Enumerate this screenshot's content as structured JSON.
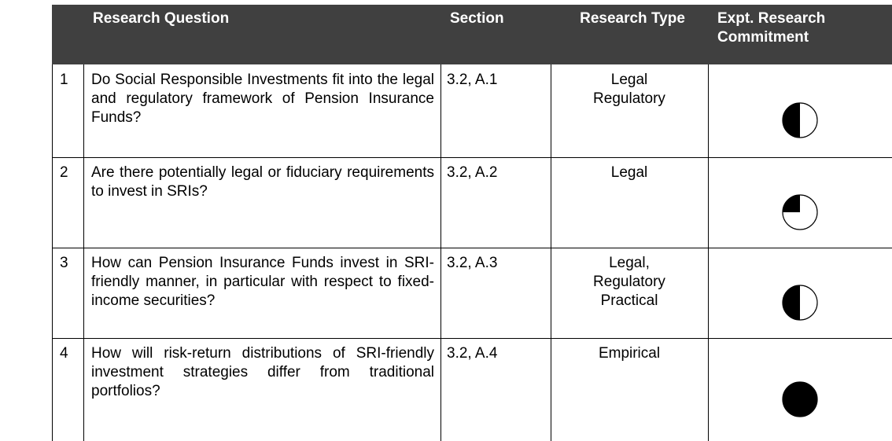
{
  "table": {
    "header": [
      "",
      "Research Question",
      "Section",
      "Research Type",
      "Expt. Research Commitment"
    ],
    "rows": [
      {
        "number": "1",
        "question": "Do Social Responsible Investments fit into the legal and regulatory framework of Pension Insurance Funds?",
        "section": "3.2, A.1",
        "type": "Legal\nRegulatory",
        "commitment": 0.5
      },
      {
        "number": "2",
        "question": "Are there potentially legal or fiduciary requirements to invest in SRIs?",
        "section": "3.2, A.2",
        "type": "Legal",
        "commitment": 0.25
      },
      {
        "number": "3",
        "question": "How can Pension Insurance Funds invest in SRI-friendly manner, in particular with respect to fixed-income securities?",
        "section": "3.2, A.3",
        "type": "Legal,\nRegulatory\nPractical",
        "commitment": 0.5
      },
      {
        "number": "4",
        "question": "How will risk-return distributions of SRI-friendly investment strategies differ from traditional portfolios?",
        "section": "3.2, A.4",
        "type": "Empirical",
        "commitment": 1
      }
    ]
  }
}
